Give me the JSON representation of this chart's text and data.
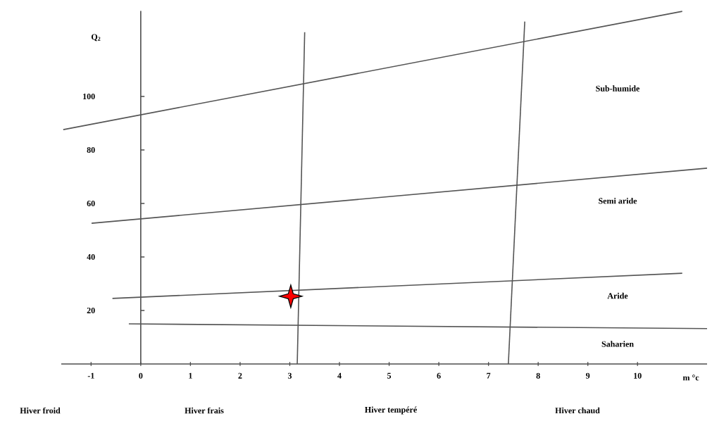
{
  "chart_data": {
    "type": "line",
    "xlabel": "m °c",
    "ylabel": "Q$_{2}$",
    "xlim": [
      -1.6,
      11.4
    ],
    "ylim": [
      0,
      132
    ],
    "xticks": [
      -1,
      0,
      1,
      2,
      3,
      4,
      5,
      6,
      7,
      8,
      9,
      10
    ],
    "yticks": [
      20,
      40,
      60,
      80,
      100
    ],
    "marker": "none",
    "line_style": "solid",
    "series": [
      {
        "color": "#555555",
        "x": [
          -1.56,
          10.9
        ],
        "values": [
          87.6,
          131.8
        ]
      },
      {
        "color": "#555555",
        "x": [
          -0.99,
          11.4
        ],
        "values": [
          52.6,
          73.2
        ]
      },
      {
        "color": "#555555",
        "x": [
          -0.57,
          10.9
        ],
        "values": [
          24.5,
          33.9
        ]
      },
      {
        "color": "#555555",
        "x": [
          -0.24,
          11.4
        ],
        "values": [
          15,
          13.2
        ]
      },
      {
        "color": "#555555",
        "x": [
          3.15,
          3.3
        ],
        "values": [
          0,
          124
        ]
      },
      {
        "color": "#555555",
        "x": [
          7.4,
          7.73
        ],
        "values": [
          0,
          128
        ]
      },
      {
        "type": "scatter",
        "color": "#ff0000",
        "marker": "star",
        "x": [
          3.02
        ],
        "values": [
          25.3
        ]
      }
    ],
    "annotations": [
      "Sub-humide",
      "Semi aride",
      "Aride",
      "Saharien",
      "Hiver froid",
      "Hiver frais",
      "Hiver tempéré",
      "Hiver chaud"
    ]
  }
}
